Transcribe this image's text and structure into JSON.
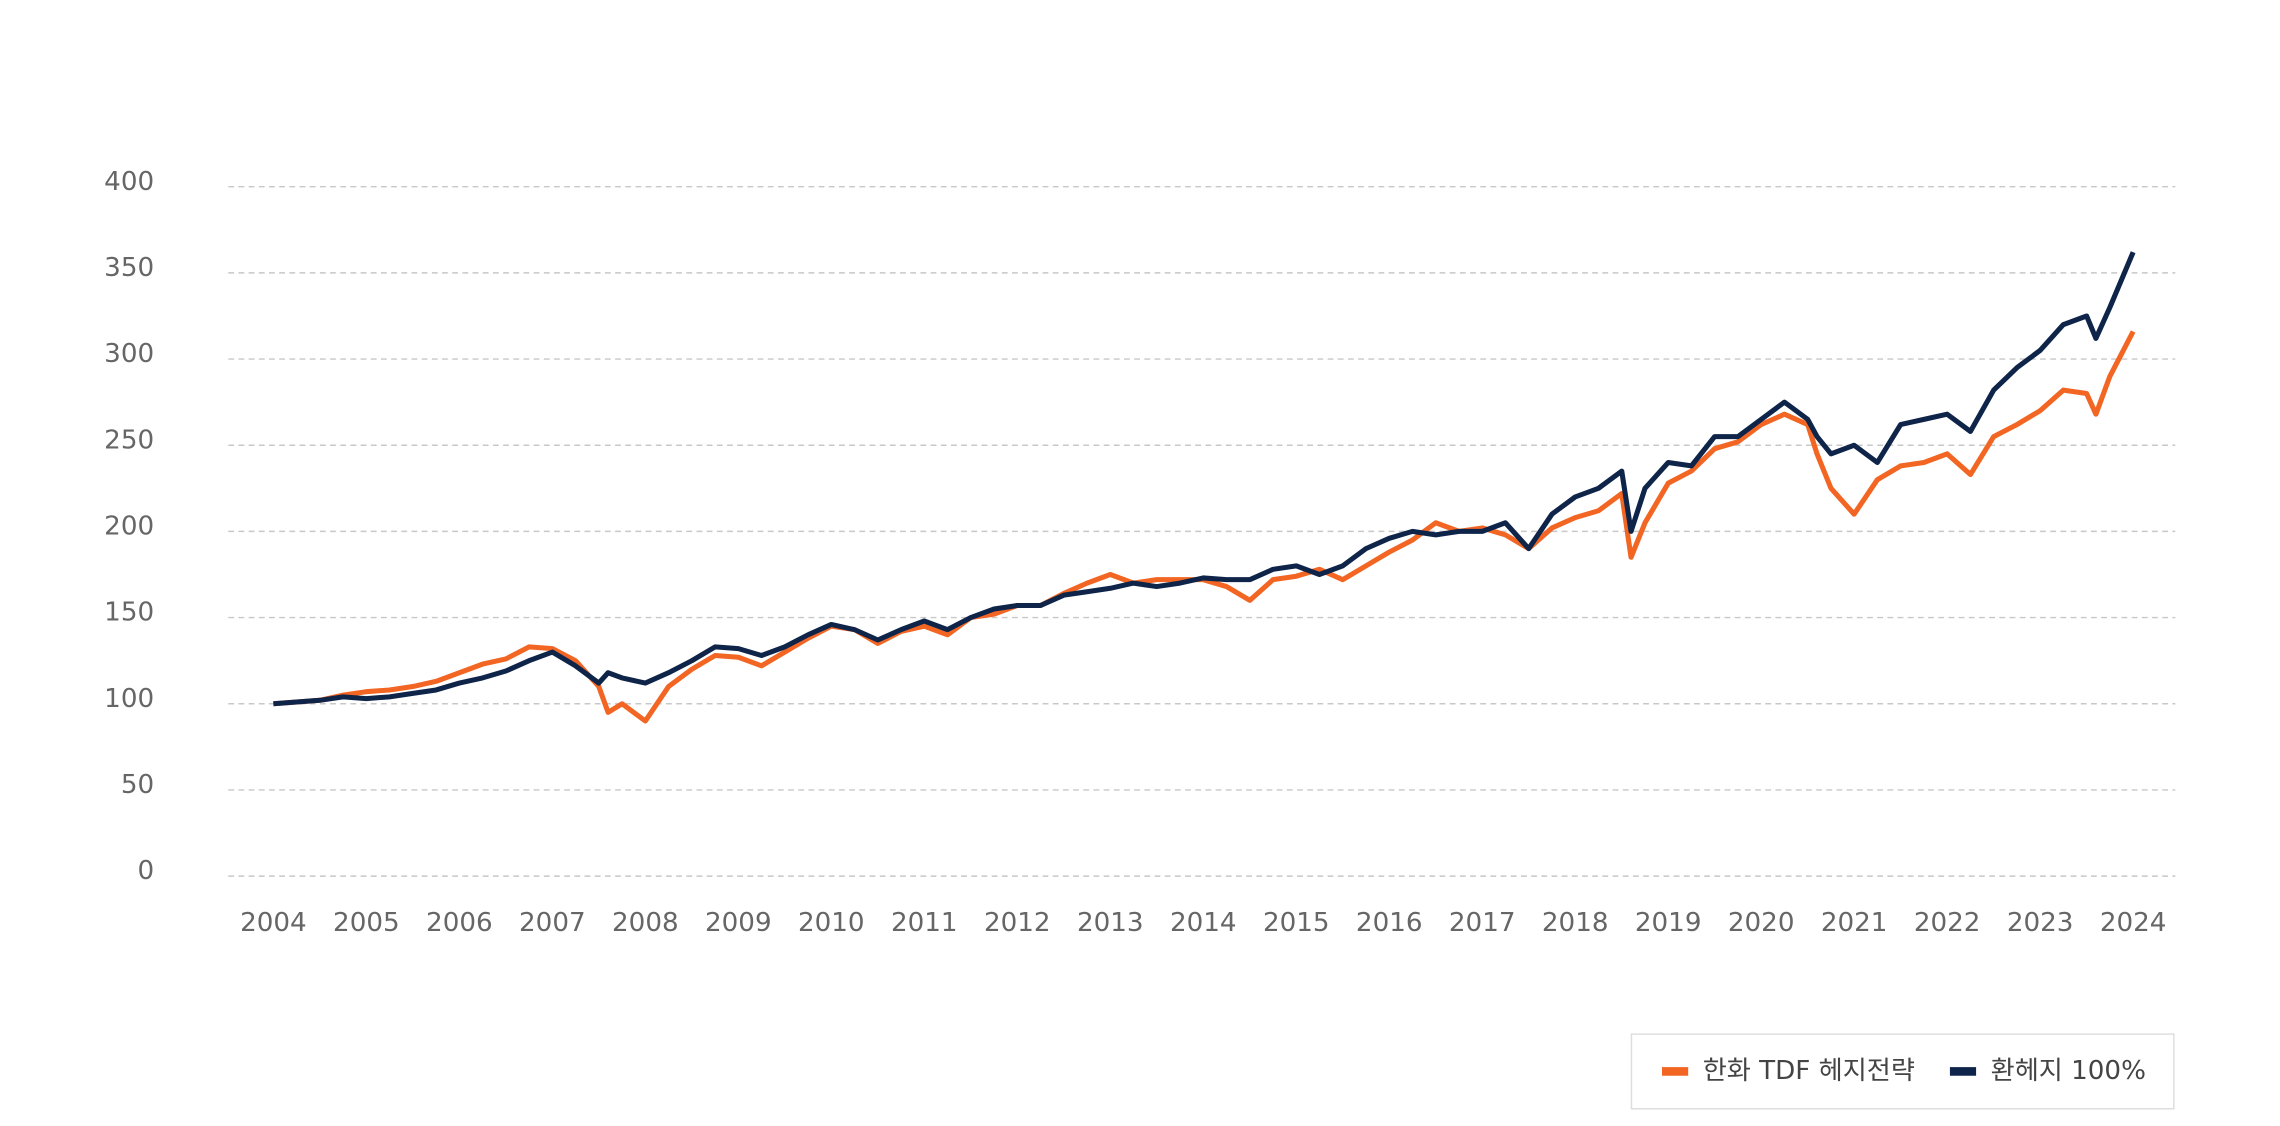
{
  "chart_data": {
    "type": "line",
    "x": [
      2004.0,
      2004.25,
      2004.5,
      2004.75,
      2005.0,
      2005.25,
      2005.5,
      2005.75,
      2006.0,
      2006.25,
      2006.5,
      2006.75,
      2007.0,
      2007.25,
      2007.5,
      2007.6,
      2007.75,
      2008.0,
      2008.25,
      2008.5,
      2008.75,
      2009.0,
      2009.25,
      2009.5,
      2009.75,
      2010.0,
      2010.25,
      2010.5,
      2010.75,
      2011.0,
      2011.25,
      2011.5,
      2011.75,
      2012.0,
      2012.25,
      2012.5,
      2012.75,
      2013.0,
      2013.25,
      2013.5,
      2013.75,
      2014.0,
      2014.25,
      2014.5,
      2014.75,
      2015.0,
      2015.25,
      2015.5,
      2015.75,
      2016.0,
      2016.25,
      2016.5,
      2016.75,
      2017.0,
      2017.25,
      2017.5,
      2017.75,
      2018.0,
      2018.25,
      2018.5,
      2018.6,
      2018.75,
      2019.0,
      2019.25,
      2019.5,
      2019.75,
      2020.0,
      2020.25,
      2020.5,
      2020.6,
      2020.75,
      2021.0,
      2021.25,
      2021.5,
      2021.75,
      2022.0,
      2022.25,
      2022.5,
      2022.75,
      2023.0,
      2023.25,
      2023.5,
      2023.6,
      2023.75,
      2024.0
    ],
    "series": [
      {
        "name": "한화 TDF 헤지전략",
        "color": "#f26522",
        "values": [
          100,
          101,
          102,
          105,
          107,
          108,
          110,
          113,
          118,
          123,
          126,
          133,
          132,
          125,
          110,
          95,
          100,
          90,
          110,
          120,
          128,
          127,
          122,
          130,
          138,
          145,
          143,
          135,
          142,
          145,
          140,
          150,
          152,
          157,
          157,
          164,
          170,
          175,
          170,
          172,
          172,
          172,
          168,
          160,
          172,
          174,
          178,
          172,
          180,
          188,
          195,
          205,
          200,
          202,
          198,
          190,
          202,
          208,
          212,
          222,
          185,
          205,
          228,
          235,
          248,
          252,
          262,
          268,
          262,
          245,
          225,
          210,
          230,
          238,
          240,
          245,
          233,
          255,
          262,
          270,
          282,
          280,
          268,
          290,
          316
        ]
      },
      {
        "name": "환헤지 100%",
        "color": "#0f2449",
        "values": [
          100,
          101,
          102,
          104,
          103,
          104,
          106,
          108,
          112,
          115,
          119,
          125,
          130,
          122,
          112,
          118,
          115,
          112,
          118,
          125,
          133,
          132,
          128,
          133,
          140,
          146,
          143,
          137,
          143,
          148,
          143,
          150,
          155,
          157,
          157,
          163,
          165,
          167,
          170,
          168,
          170,
          173,
          172,
          172,
          178,
          180,
          175,
          180,
          190,
          196,
          200,
          198,
          200,
          200,
          205,
          190,
          210,
          220,
          225,
          235,
          200,
          225,
          240,
          238,
          255,
          255,
          265,
          275,
          265,
          255,
          245,
          250,
          240,
          262,
          265,
          268,
          258,
          282,
          295,
          305,
          320,
          325,
          312,
          330,
          362
        ]
      }
    ],
    "xlim": [
      2004,
      2024
    ],
    "xticks": [
      2004,
      2005,
      2006,
      2007,
      2008,
      2009,
      2010,
      2011,
      2012,
      2013,
      2014,
      2015,
      2016,
      2017,
      2018,
      2019,
      2020,
      2021,
      2022,
      2023,
      2024
    ],
    "ylim": [
      0,
      400
    ],
    "yticks": [
      0,
      50,
      100,
      150,
      200,
      250,
      300,
      350,
      400
    ],
    "grid": true
  }
}
